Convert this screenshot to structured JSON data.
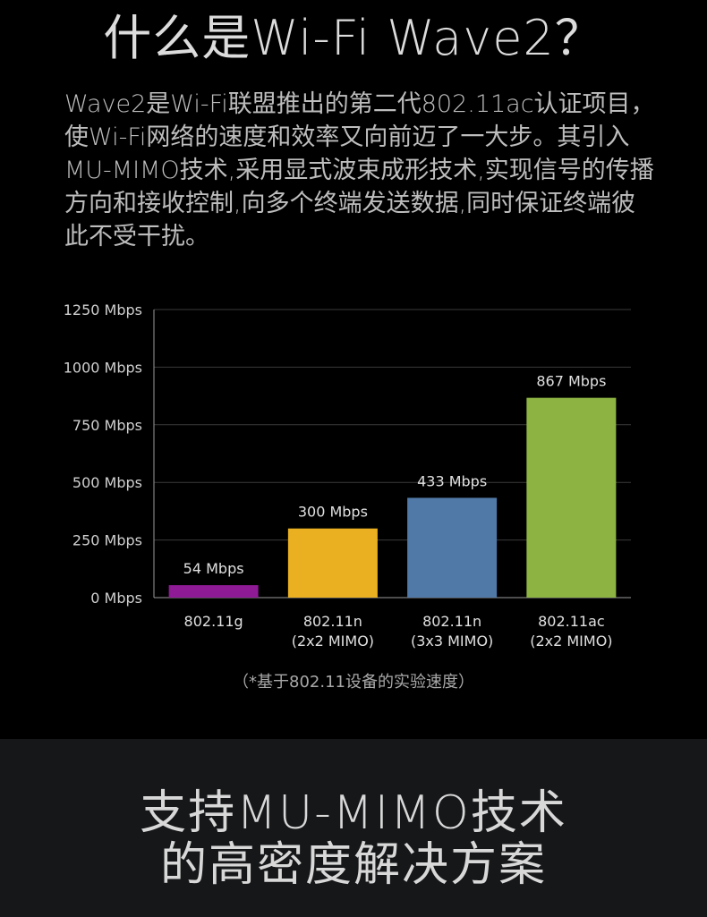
{
  "header": {
    "title": "什么是Wi-Fi Wave2？",
    "description": "Wave2是Wi-Fi联盟推出的第二代802.11ac认证项目，使Wi-Fi网络的速度和效率又向前迈了一大步。其引入MU-MIMO技术,采用显式波束成形技术,实现信号的传播方向和接收控制,向多个终端发送数据,同时保证终端彼此不受干扰。"
  },
  "chart_data": {
    "type": "bar",
    "categories": [
      [
        "802.11g"
      ],
      [
        "802.11n",
        "(2x2 MIMO)"
      ],
      [
        "802.11n",
        "(3x3 MIMO)"
      ],
      [
        "802.11ac",
        "(2x2 MIMO)"
      ]
    ],
    "values": [
      54,
      300,
      433,
      867
    ],
    "value_labels": [
      "54 Mbps",
      "300 Mbps",
      "433 Mbps",
      "867 Mbps"
    ],
    "colors": [
      "#8e1a96",
      "#ebb022",
      "#5079a7",
      "#8db443"
    ],
    "yticks": [
      0,
      250,
      500,
      750,
      1000,
      1250
    ],
    "ytick_labels": [
      "0 Mbps",
      "250 Mbps",
      "500 Mbps",
      "750 Mbps",
      "1000 Mbps",
      "1250 Mbps"
    ],
    "ylim": [
      0,
      1250
    ],
    "grid": true,
    "title": "",
    "xlabel": "",
    "ylabel": ""
  },
  "footnote": "（*基于802.11设备的实验速度）",
  "slogan": {
    "line1": "支持MU-MIMO技术",
    "line2": "的高密度解决方案"
  }
}
